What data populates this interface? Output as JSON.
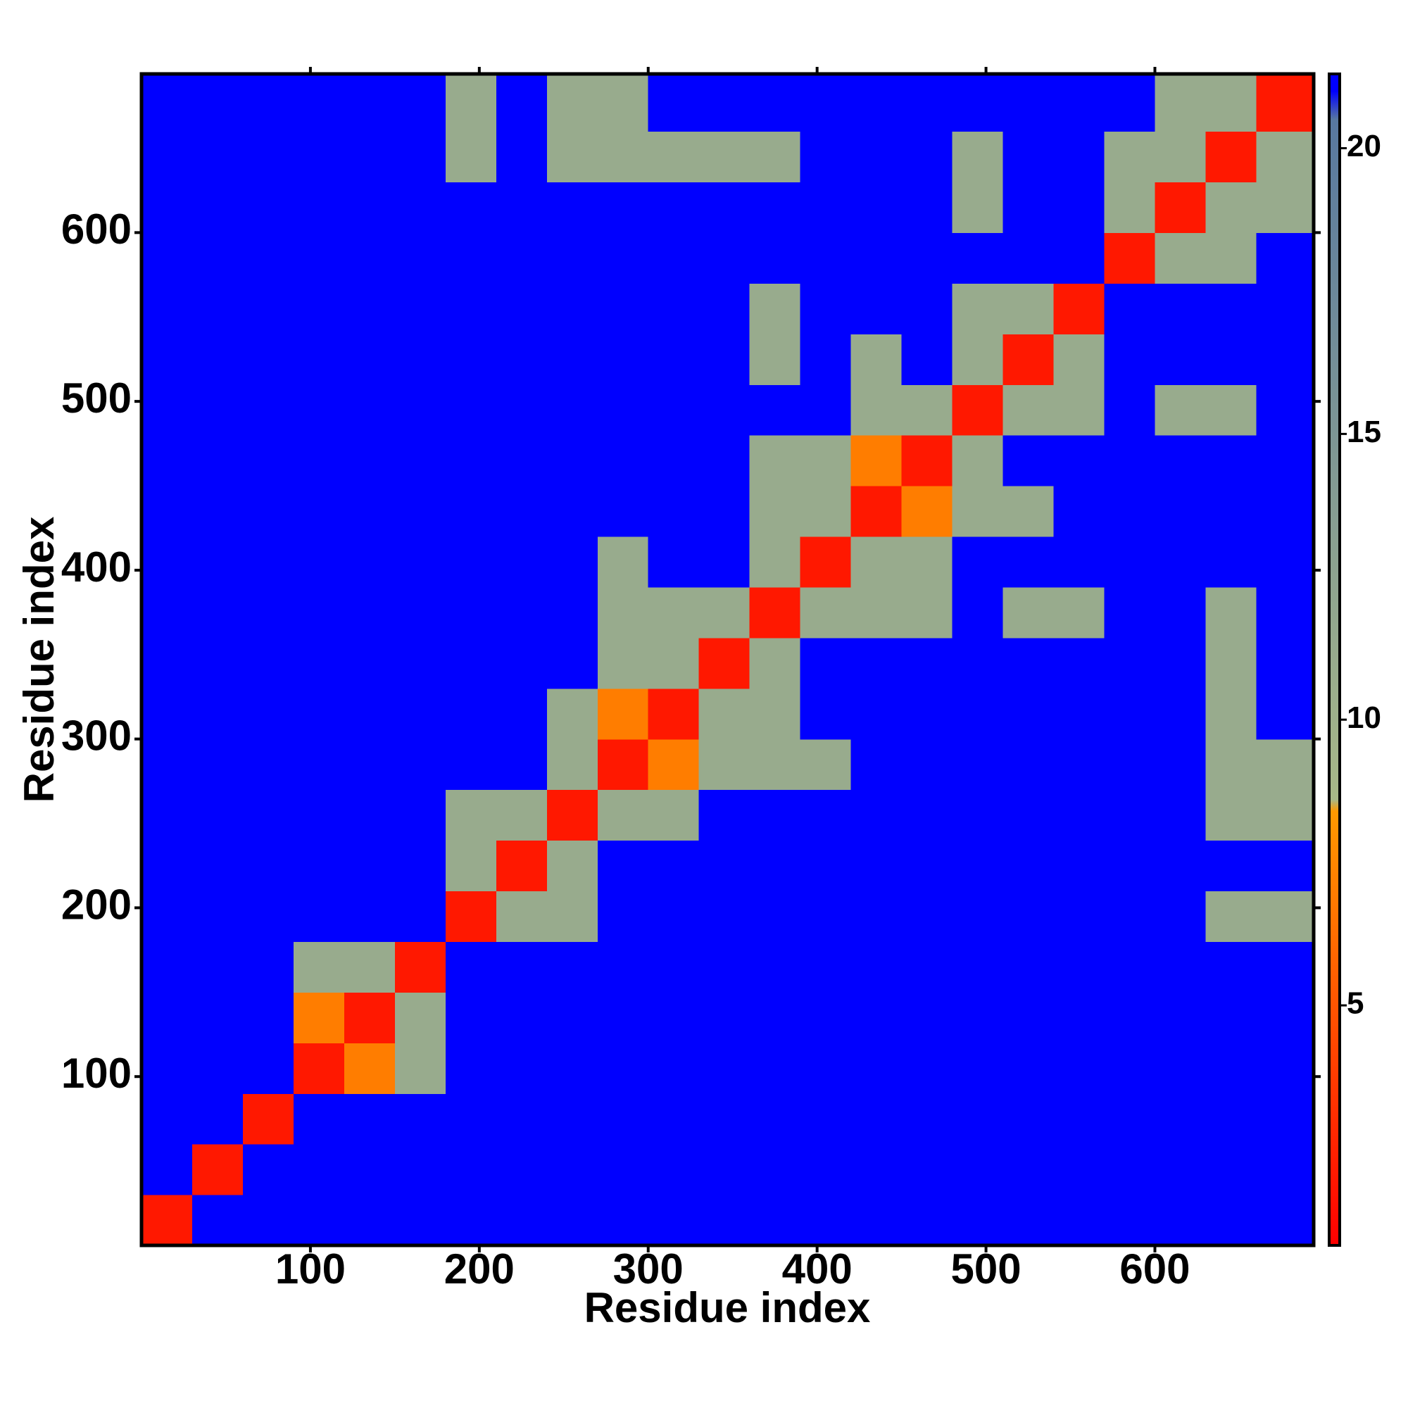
{
  "chart_data": {
    "type": "heatmap",
    "x_label": "Residue index",
    "y_label": "Residue index",
    "xbins": [
      0,
      30,
      60,
      90,
      120,
      150,
      180,
      210,
      240,
      270,
      300,
      330,
      360,
      390,
      420,
      450,
      480,
      510,
      540,
      570,
      600,
      630,
      660,
      694
    ],
    "ybins": [
      0,
      30,
      60,
      90,
      120,
      150,
      180,
      210,
      240,
      270,
      300,
      330,
      360,
      390,
      420,
      450,
      480,
      510,
      540,
      570,
      600,
      630,
      660,
      694
    ],
    "xlim": [
      0,
      694
    ],
    "ylim": [
      0,
      694
    ],
    "xticks": [
      100,
      200,
      300,
      400,
      500,
      600
    ],
    "yticks": [
      100,
      200,
      300,
      400,
      500,
      600
    ],
    "clim": [
      0.8,
      21.3
    ],
    "cticks": [
      5,
      10,
      15,
      20
    ],
    "colorscale": [
      [
        0.8,
        "#ff0000"
      ],
      [
        8.4,
        "#ff9900"
      ],
      [
        8.6,
        "#a8b888"
      ],
      [
        20.5,
        "#5878a0"
      ],
      [
        21,
        "#0000ff"
      ],
      [
        21.3,
        "#0000ff"
      ]
    ],
    "values": [
      [
        2,
        21,
        21,
        21,
        21,
        21,
        21,
        21,
        21,
        21,
        21,
        21,
        21,
        21,
        21,
        21,
        21,
        21,
        21,
        21,
        21,
        21,
        21
      ],
      [
        21,
        2,
        21,
        21,
        21,
        21,
        21,
        21,
        21,
        21,
        21,
        21,
        21,
        21,
        21,
        21,
        21,
        21,
        21,
        21,
        21,
        21,
        21
      ],
      [
        21,
        21,
        2,
        21,
        21,
        21,
        21,
        21,
        21,
        21,
        21,
        21,
        21,
        21,
        21,
        21,
        21,
        21,
        21,
        21,
        21,
        21,
        21
      ],
      [
        21,
        21,
        21,
        2,
        7,
        11,
        21,
        21,
        21,
        21,
        21,
        21,
        21,
        21,
        21,
        21,
        21,
        21,
        21,
        21,
        21,
        21,
        21
      ],
      [
        21,
        21,
        21,
        7,
        2,
        11,
        21,
        21,
        21,
        21,
        21,
        21,
        21,
        21,
        21,
        21,
        21,
        21,
        21,
        21,
        21,
        21,
        21
      ],
      [
        21,
        21,
        21,
        11,
        11,
        2,
        21,
        21,
        21,
        21,
        21,
        21,
        21,
        21,
        21,
        21,
        21,
        21,
        21,
        21,
        21,
        21,
        21
      ],
      [
        21,
        21,
        21,
        21,
        21,
        21,
        2,
        11,
        11,
        21,
        21,
        21,
        21,
        21,
        21,
        21,
        21,
        21,
        21,
        21,
        21,
        11,
        11
      ],
      [
        21,
        21,
        21,
        21,
        21,
        21,
        11,
        2,
        11,
        21,
        21,
        21,
        21,
        21,
        21,
        21,
        21,
        21,
        21,
        21,
        21,
        21,
        21
      ],
      [
        21,
        21,
        21,
        21,
        21,
        21,
        11,
        11,
        2,
        11,
        11,
        21,
        21,
        21,
        21,
        21,
        21,
        21,
        21,
        21,
        21,
        11,
        11
      ],
      [
        21,
        21,
        21,
        21,
        21,
        21,
        21,
        21,
        11,
        2,
        7,
        11,
        11,
        11,
        21,
        21,
        21,
        21,
        21,
        21,
        21,
        11,
        11
      ],
      [
        21,
        21,
        21,
        21,
        21,
        21,
        21,
        21,
        11,
        7,
        2,
        11,
        11,
        21,
        21,
        21,
        21,
        21,
        21,
        21,
        21,
        11,
        21
      ],
      [
        21,
        21,
        21,
        21,
        21,
        21,
        21,
        21,
        21,
        11,
        11,
        2,
        11,
        21,
        21,
        21,
        21,
        21,
        21,
        21,
        21,
        11,
        21
      ],
      [
        21,
        21,
        21,
        21,
        21,
        21,
        21,
        21,
        21,
        11,
        11,
        11,
        2,
        11,
        11,
        11,
        21,
        11,
        11,
        21,
        21,
        11,
        21
      ],
      [
        21,
        21,
        21,
        21,
        21,
        21,
        21,
        21,
        21,
        11,
        21,
        21,
        11,
        2,
        11,
        11,
        21,
        21,
        21,
        21,
        21,
        21,
        21
      ],
      [
        21,
        21,
        21,
        21,
        21,
        21,
        21,
        21,
        21,
        21,
        21,
        21,
        11,
        11,
        2,
        7,
        11,
        11,
        21,
        21,
        21,
        21,
        21
      ],
      [
        21,
        21,
        21,
        21,
        21,
        21,
        21,
        21,
        21,
        21,
        21,
        21,
        11,
        11,
        7,
        2,
        11,
        21,
        21,
        21,
        21,
        21,
        21
      ],
      [
        21,
        21,
        21,
        21,
        21,
        21,
        21,
        21,
        21,
        21,
        21,
        21,
        21,
        21,
        11,
        11,
        2,
        11,
        11,
        21,
        11,
        11,
        21
      ],
      [
        21,
        21,
        21,
        21,
        21,
        21,
        21,
        21,
        21,
        21,
        21,
        21,
        11,
        21,
        11,
        21,
        11,
        2,
        11,
        21,
        21,
        21,
        21
      ],
      [
        21,
        21,
        21,
        21,
        21,
        21,
        21,
        21,
        21,
        21,
        21,
        21,
        11,
        21,
        21,
        21,
        11,
        11,
        2,
        21,
        21,
        21,
        21
      ],
      [
        21,
        21,
        21,
        21,
        21,
        21,
        21,
        21,
        21,
        21,
        21,
        21,
        21,
        21,
        21,
        21,
        21,
        21,
        21,
        2,
        11,
        11,
        21
      ],
      [
        21,
        21,
        21,
        21,
        21,
        21,
        21,
        21,
        21,
        21,
        21,
        21,
        21,
        21,
        21,
        21,
        11,
        21,
        21,
        11,
        2,
        11,
        11
      ],
      [
        21,
        21,
        21,
        21,
        21,
        21,
        11,
        21,
        11,
        11,
        11,
        11,
        11,
        21,
        21,
        21,
        11,
        21,
        21,
        11,
        11,
        2,
        11
      ],
      [
        21,
        21,
        21,
        21,
        21,
        21,
        11,
        21,
        11,
        11,
        21,
        21,
        21,
        21,
        21,
        21,
        21,
        21,
        21,
        21,
        11,
        11,
        2
      ]
    ]
  }
}
